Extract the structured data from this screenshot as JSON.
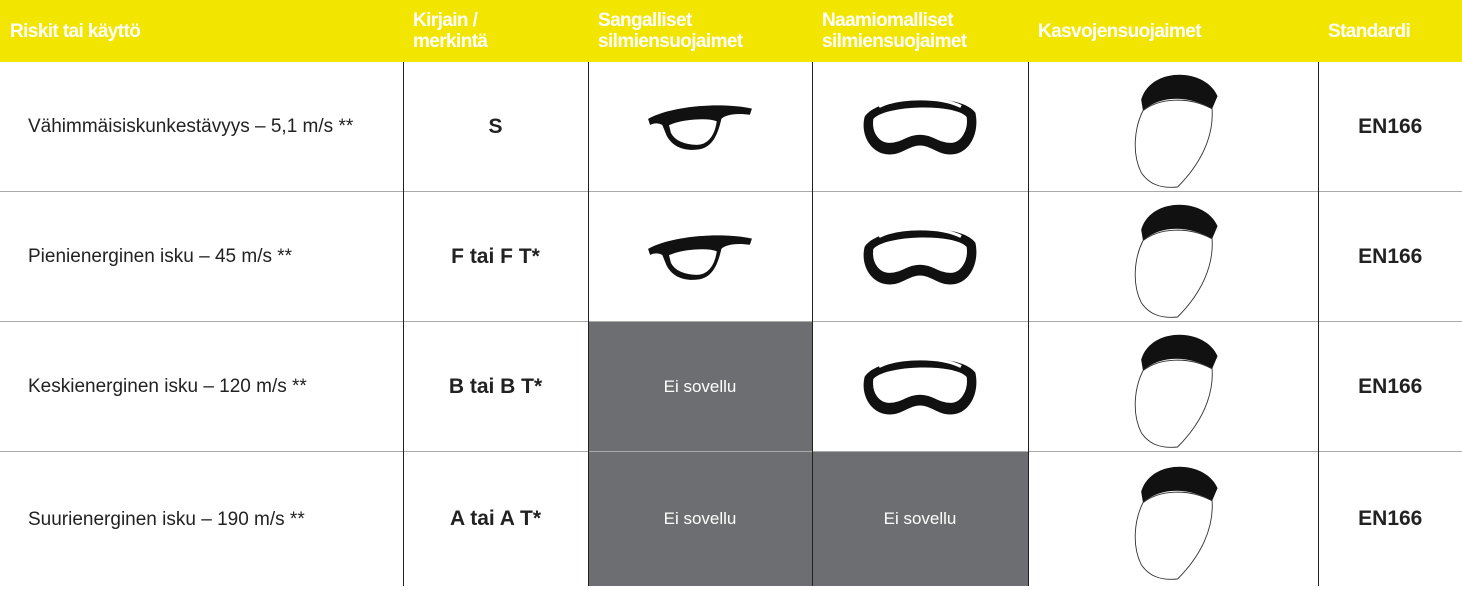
{
  "table": {
    "headers": [
      "Riskit tai käyttö",
      "Kirjain / merkintä",
      "Sangalliset silmiensuojaimet",
      "Naamiomalliset silmiensuojaimet",
      "Kasvojensuojaimet",
      "Standardi"
    ],
    "rows": [
      {
        "risk": "Vähimmäisiskunkestävyys – 5,1 m/s **",
        "marking": "S",
        "standard": "EN166"
      },
      {
        "risk": "Pienienerginen isku – 45 m/s **",
        "marking": "F tai F T*",
        "standard": "EN166"
      },
      {
        "risk": "Keskienerginen isku – 120 m/s **",
        "marking": "B tai B T*",
        "frame": "Ei sovellu",
        "standard": "EN166"
      },
      {
        "risk": "Suurienerginen isku – 190 m/s **",
        "marking": "A tai A T*",
        "frame": "Ei sovellu",
        "goggle": "Ei sovellu",
        "standard": "EN166"
      }
    ]
  }
}
